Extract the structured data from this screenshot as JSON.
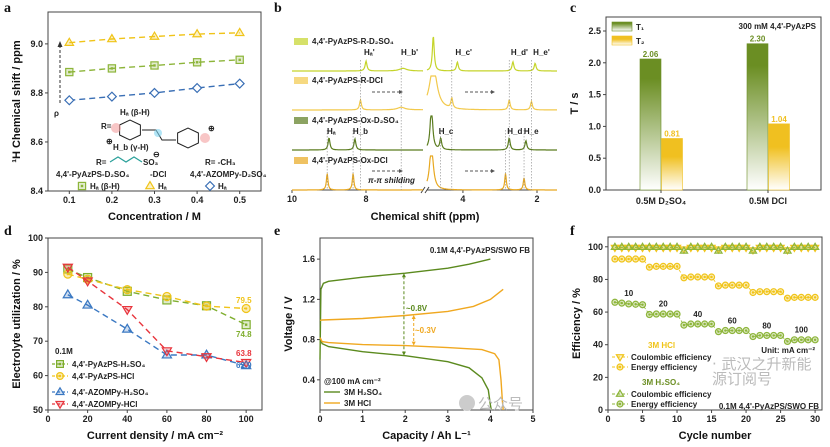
{
  "figure": {
    "watermark_left": "公众号",
    "watermark_right": "· 武汉之升新能源订阅号"
  },
  "chart_data": [
    {
      "panel": "a",
      "type": "line",
      "xlabel": "Concentration / M",
      "ylabel": "¹H Chemical shift / ppm",
      "xlim": [
        0.05,
        0.55
      ],
      "ylim": [
        8.4,
        9.13
      ],
      "xticks": [
        "0.1",
        "0.2",
        "0.3",
        "0.4",
        "0.5"
      ],
      "yticks": [
        "8.4",
        "8.6",
        "8.8",
        "9.0"
      ],
      "x": [
        0.1,
        0.2,
        0.3,
        0.4,
        0.5
      ],
      "series": [
        {
          "name": "Hₐ",
          "marker": "triangle",
          "color": "#f0c419",
          "values": [
            9.005,
            9.02,
            9.03,
            9.04,
            9.045
          ]
        },
        {
          "name": "Hₐ (β-H)",
          "marker": "square",
          "color": "#8db53a",
          "values": [
            8.885,
            8.9,
            8.912,
            8.925,
            8.935
          ]
        },
        {
          "name": "Hₐ",
          "marker": "diamond",
          "color": "#3a6fb5",
          "values": [
            8.77,
            8.785,
            8.8,
            8.82,
            8.838
          ]
        }
      ],
      "legend_groups": [
        "4,4'-PyAzPS-D₂SO₄",
        "-DCl",
        "4,4'-AZOMPy-D₂SO₄"
      ],
      "annotations": {
        "rho": "ρ",
        "structure_ha": "Hₐ (β-H)",
        "structure_hb": "H_b (γ-H)",
        "r_left": "R=",
        "r_right": "R= -CH₃",
        "so3": "SO₃",
        "n_plus": "⊕",
        "so3_minus": "⊖"
      }
    },
    {
      "panel": "b",
      "type": "line",
      "xlabel": "Chemical shift (ppm)",
      "x_segments": [
        [
          10,
          6.46
        ],
        [
          4.97,
          1.46
        ]
      ],
      "xticks": [
        "10",
        "8",
        "4",
        "2"
      ],
      "traces": [
        {
          "name": "4,4'-PyAzPS-R-D₂SO₄",
          "color": "#c5d42a",
          "peaks": [
            {
              "ppm": 8.0,
              "h": 0.45,
              "w": 0.03,
              "label": "Hₐ'"
            },
            {
              "ppm": 7.0,
              "h": 0.12,
              "w": 0.12,
              "label": "H_b'"
            },
            {
              "ppm": 4.8,
              "h": 1.6,
              "w": 0.03,
              "label": ""
            },
            {
              "ppm": 4.15,
              "h": 0.4,
              "w": 0.03,
              "label": "H_c'"
            },
            {
              "ppm": 2.65,
              "h": 0.42,
              "w": 0.03,
              "label": "H_d'"
            },
            {
              "ppm": 2.05,
              "h": 0.35,
              "w": 0.03,
              "label": "H_e'"
            }
          ]
        },
        {
          "name": "4,4'-PyAzPS-R-DCl",
          "color": "#f2c94c",
          "peaks": [
            {
              "ppm": 8.15,
              "h": 0.45,
              "w": 0.03,
              "label": ""
            },
            {
              "ppm": 7.05,
              "h": 0.12,
              "w": 0.12,
              "label": ""
            },
            {
              "ppm": 4.8,
              "h": 2.0,
              "w": 0.12,
              "label": ""
            },
            {
              "ppm": 4.3,
              "h": 0.45,
              "w": 0.03,
              "label": ""
            },
            {
              "ppm": 2.75,
              "h": 0.45,
              "w": 0.03,
              "label": ""
            },
            {
              "ppm": 2.15,
              "h": 0.38,
              "w": 0.03,
              "label": ""
            }
          ]
        },
        {
          "name": "4,4'-PyAzPS-Ox-D₂SO₄",
          "color": "#5b7c1f",
          "peaks": [
            {
              "ppm": 9.0,
              "h": 0.55,
              "w": 0.03,
              "label": "Hₐ"
            },
            {
              "ppm": 8.3,
              "h": 0.5,
              "w": 0.03,
              "label": "H_b"
            },
            {
              "ppm": 4.85,
              "h": 2.0,
              "w": 0.04,
              "label": ""
            },
            {
              "ppm": 4.6,
              "h": 0.5,
              "w": 0.03,
              "label": "H_c"
            },
            {
              "ppm": 2.75,
              "h": 0.55,
              "w": 0.03,
              "label": "H_d"
            },
            {
              "ppm": 2.3,
              "h": 0.42,
              "w": 0.03,
              "label": "H_e"
            }
          ]
        },
        {
          "name": "4,4'-PyAzPS-Ox-DCl",
          "color": "#e8a820",
          "peaks": [
            {
              "ppm": 9.05,
              "h": 0.75,
              "w": 0.025,
              "label": ""
            },
            {
              "ppm": 8.35,
              "h": 0.75,
              "w": 0.025,
              "label": ""
            },
            {
              "ppm": 4.85,
              "h": 2.0,
              "w": 0.06,
              "label": ""
            },
            {
              "ppm": 2.85,
              "h": 0.75,
              "w": 0.025,
              "label": ""
            },
            {
              "ppm": 2.35,
              "h": 0.55,
              "w": 0.025,
              "label": ""
            }
          ]
        }
      ],
      "annotations": {
        "shielding": "π-π shilding"
      }
    },
    {
      "panel": "c",
      "type": "bar",
      "ylabel": "T / s",
      "ylim": [
        0,
        2.72
      ],
      "yticks": [
        "0.0",
        "0.5",
        "1.0",
        "1.5",
        "2.0",
        "2.5"
      ],
      "categories": [
        "0.5M D₂SO₄",
        "0.5M DCl"
      ],
      "series": [
        {
          "name": "T₁",
          "color": "#6b8e23",
          "values": [
            2.06,
            2.3
          ],
          "labels": [
            "2.06",
            "2.30"
          ]
        },
        {
          "name": "T₂",
          "color": "#f0c020",
          "values": [
            0.81,
            1.04
          ],
          "labels": [
            "0.81",
            "1.04"
          ]
        }
      ],
      "annotation": "300 mM 4,4'-PyAzPS"
    },
    {
      "panel": "d",
      "type": "line",
      "xlabel": "Current density / mA cm⁻²",
      "ylabel": "Electrolyte utilization / %",
      "xlim": [
        0,
        108
      ],
      "ylim": [
        50,
        100
      ],
      "xticks": [
        "0",
        "20",
        "40",
        "60",
        "80",
        "100"
      ],
      "yticks": [
        "50",
        "60",
        "70",
        "80",
        "90",
        "100"
      ],
      "x": [
        10,
        20,
        40,
        60,
        80,
        100
      ],
      "legend_title": "0.1M",
      "series": [
        {
          "name": "4,4'-PyAzPS-H₂SO₄",
          "marker": "square",
          "color": "#7fae2e",
          "values": [
            91,
            88.5,
            84.5,
            82,
            80.3,
            74.8
          ],
          "end_label": "74.8"
        },
        {
          "name": "4,4'-PyAzPS-HCl",
          "marker": "circle",
          "color": "#f0c419",
          "values": [
            89.5,
            88,
            85,
            83,
            80.2,
            79.5
          ],
          "end_label": "79.5"
        },
        {
          "name": "4,4'-AZOMPy-H₂SO₄",
          "marker": "triangle",
          "color": "#3a78c2",
          "values": [
            83.5,
            80.5,
            73.5,
            66,
            66,
            62.9
          ],
          "end_label": "62.9"
        },
        {
          "name": "4,4'-AZOMPy-HCl",
          "marker": "invtriangle",
          "color": "#e8343c",
          "values": [
            91.5,
            87.5,
            79.2,
            67.2,
            65.5,
            63.8
          ],
          "end_label": "63.8"
        }
      ]
    },
    {
      "panel": "e",
      "type": "line",
      "xlabel": "Capacity / Ah L⁻¹",
      "ylabel": "Voltage / V",
      "xlim": [
        0,
        5
      ],
      "ylim": [
        0.1,
        1.81
      ],
      "xticks": [
        "0",
        "1",
        "2",
        "3",
        "4",
        "5"
      ],
      "yticks": [
        "0.4",
        "0.8",
        "1.2",
        "1.6"
      ],
      "series": [
        {
          "name": "3M H₂SO₄",
          "color": "#5b8a1e",
          "charge": {
            "x": [
              0,
              0.02,
              0.08,
              0.2,
              1,
              2,
              3,
              3.5,
              4
            ],
            "y": [
              0.6,
              1.3,
              1.36,
              1.38,
              1.42,
              1.46,
              1.51,
              1.55,
              1.6
            ]
          },
          "discharge": {
            "x": [
              0,
              0.05,
              0.2,
              1,
              2,
              3,
              3.5,
              3.8,
              3.95,
              4,
              4.02
            ],
            "y": [
              0.82,
              0.76,
              0.73,
              0.68,
              0.64,
              0.58,
              0.52,
              0.42,
              0.3,
              0.15,
              0.1
            ]
          }
        },
        {
          "name": "3M HCl",
          "color": "#f0a820",
          "charge": {
            "x": [
              0,
              0.05,
              1,
              2,
              3,
              3.6,
              4,
              4.3
            ],
            "y": [
              0.99,
              0.995,
              1.01,
              1.04,
              1.08,
              1.13,
              1.2,
              1.3
            ]
          },
          "discharge": {
            "x": [
              0,
              0.05,
              0.2,
              1,
              2,
              3,
              3.8,
              4.1,
              4.2,
              4.25,
              4.28,
              4.3
            ],
            "y": [
              0.82,
              0.78,
              0.77,
              0.75,
              0.74,
              0.72,
              0.7,
              0.66,
              0.6,
              0.4,
              0.2,
              0.1
            ]
          }
        }
      ],
      "annotations": {
        "title": "0.1M 4,4'-PyAzPS/SWO FB",
        "rate": "@100 mA cm⁻²",
        "gap_green": "~0.8V",
        "gap_orange": "~0.3V"
      }
    },
    {
      "panel": "f",
      "type": "scatter",
      "xlabel": "Cycle number",
      "ylabel": "Efficiency / %",
      "xlim": [
        0,
        31
      ],
      "ylim": [
        0,
        106
      ],
      "xticks": [
        "0",
        "5",
        "10",
        "15",
        "20",
        "25",
        "30"
      ],
      "yticks": [
        "0",
        "20",
        "40",
        "60",
        "80",
        "100"
      ],
      "series": [
        {
          "name": "Coulombic efficiency",
          "group": "3M HCl",
          "marker": "invtriangle",
          "color": "#f0c419",
          "values": [
            99.5,
            99.5,
            99.5,
            99.5,
            99.5,
            99.5,
            99.5,
            99.5,
            99.5,
            99.5,
            98.5,
            99.5,
            99.5,
            99.5,
            99.5,
            98.5,
            99.5,
            99.5,
            99.5,
            99.5,
            98,
            99.5,
            99.5,
            99.5,
            99.5,
            98,
            99.5,
            99.5,
            99.5,
            99.5
          ]
        },
        {
          "name": "Energy efficiency",
          "group": "3M HCl",
          "marker": "circle",
          "color": "#f0c419",
          "values": [
            92.5,
            92.5,
            92.5,
            92.5,
            92.5,
            87.5,
            88,
            88,
            88,
            88,
            81,
            81.5,
            81.5,
            81.5,
            81.5,
            76,
            76.5,
            76.5,
            76.5,
            76.5,
            72,
            72.5,
            72.5,
            72.5,
            72.5,
            68.5,
            69,
            69,
            69,
            69
          ]
        },
        {
          "name": "Coulombic efficiency",
          "group": "3M H₂SO₄",
          "marker": "triangle",
          "color": "#8db53a",
          "values": [
            99.8,
            99.8,
            99.8,
            99.8,
            99.8,
            99.8,
            99.8,
            99.8,
            99.8,
            99.8,
            97.5,
            99.8,
            99.8,
            99.8,
            99.8,
            97.5,
            99.8,
            99.8,
            99.8,
            99.8,
            97.5,
            99.8,
            99.8,
            99.8,
            99.8,
            97.5,
            99.8,
            99.8,
            99.8,
            99.8
          ]
        },
        {
          "name": "Energy efficiency",
          "group": "3M H₂SO₄",
          "marker": "circle",
          "color": "#8db53a",
          "values": [
            66,
            65.5,
            65,
            64.8,
            64.5,
            58.5,
            58.8,
            58.8,
            58.8,
            58.8,
            52,
            52.7,
            52.7,
            52.7,
            52.7,
            48,
            48.7,
            48.7,
            48.7,
            48.7,
            45,
            45.7,
            45.7,
            45.7,
            45.7,
            42,
            43,
            43,
            43,
            43
          ]
        }
      ],
      "rate_labels": [
        "10",
        "20",
        "40",
        "60",
        "80",
        "100"
      ],
      "groups": [
        "3M HCl",
        "3M H₂SO₄"
      ],
      "annotations": {
        "unit": "Unit: mA cm⁻²",
        "title": "0.1M 4,4'-PyAzPS/SWO FB"
      }
    }
  ]
}
